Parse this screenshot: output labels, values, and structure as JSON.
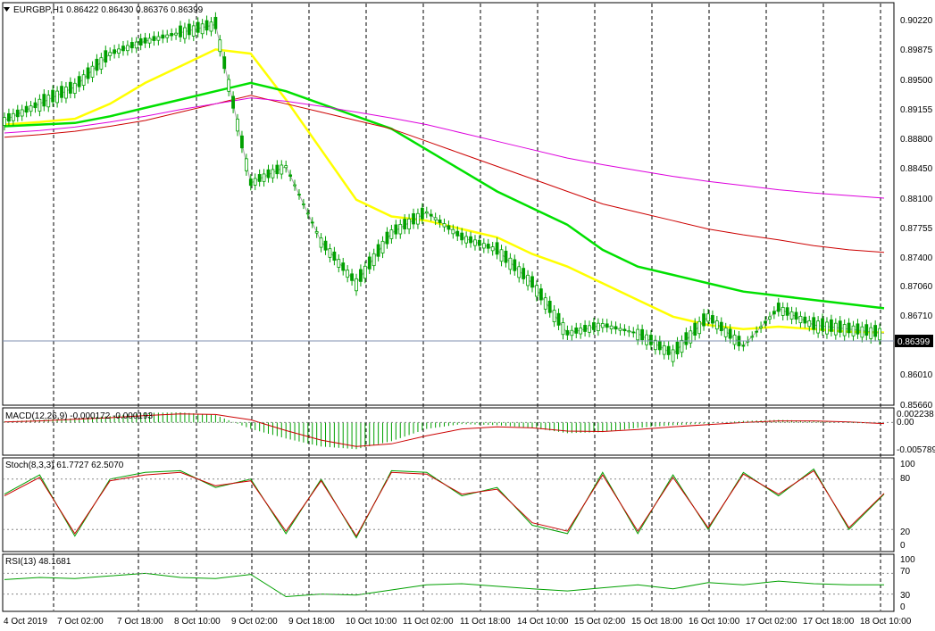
{
  "header": {
    "symbol_line": "EURGBP,H1  0.86422 0.86430 0.86376 0.86399",
    "menu_icon": "triangle-down-icon"
  },
  "panels": {
    "macd_label": "MACD(12,26,9) -0.000172 -0.000193",
    "stoch_label": "Stoch(8,3,3) 61.7727 62.5070",
    "rsi_label": "RSI(13) 48.1681"
  },
  "price_axis": {
    "labels": [
      "0.90220",
      "0.89875",
      "0.89500",
      "0.89155",
      "0.88800",
      "0.88450",
      "0.88100",
      "0.87755",
      "0.87400",
      "0.87060",
      "0.86710",
      "0.86010",
      "0.85660"
    ],
    "current_price": "0.86399"
  },
  "macd_axis": {
    "labels": [
      "0.002238",
      "0.00",
      "-0.005789"
    ]
  },
  "stoch_axis": {
    "labels": [
      "100",
      "80",
      "20",
      "0"
    ]
  },
  "rsi_axis": {
    "labels": [
      "100",
      "70",
      "30",
      "0"
    ]
  },
  "time_axis": {
    "labels": [
      "4 Oct 2019",
      "7 Oct 02:00",
      "7 Oct 18:00",
      "8 Oct 10:00",
      "9 Oct 02:00",
      "9 Oct 18:00",
      "10 Oct 10:00",
      "11 Oct 02:00",
      "11 Oct 18:00",
      "14 Oct 10:00",
      "15 Oct 02:00",
      "15 Oct 18:00",
      "16 Oct 10:00",
      "17 Oct 02:00",
      "17 Oct 18:00",
      "18 Oct 10:00"
    ]
  },
  "colors": {
    "bull_candle": "#00a000",
    "bear_candle": "#00a000",
    "ma_fast": "#ffff00",
    "ma_mid": "#00e000",
    "ma_slow": "#cc0000",
    "ma_slowest": "#dd00dd",
    "ma_thin": "#a0a0a0",
    "stoch_main": "#00a000",
    "stoch_signal": "#cc0000",
    "rsi_line": "#00a000",
    "macd_hist": "#00a000",
    "macd_signal": "#cc0000",
    "grid_vertical": "#000000",
    "price_line": "#8090b0"
  },
  "chart_data": [
    {
      "type": "line",
      "panel": "price",
      "title": "EURGBP,H1",
      "ohlc_last": {
        "open": 0.86422,
        "high": 0.8643,
        "low": 0.86376,
        "close": 0.86399
      },
      "ylim": [
        0.8555,
        0.9035
      ],
      "x": [
        0,
        4,
        8,
        12,
        16,
        20,
        24,
        28,
        32,
        36,
        40,
        44,
        48,
        52,
        56,
        60,
        64,
        68,
        72,
        76,
        80,
        84,
        88,
        92,
        96,
        100
      ],
      "series": [
        {
          "role": "candles_close",
          "values": [
            0.8895,
            0.8915,
            0.8935,
            0.8975,
            0.899,
            0.9,
            0.901,
            0.882,
            0.884,
            0.875,
            0.87,
            0.876,
            0.8785,
            0.8755,
            0.874,
            0.87,
            0.864,
            0.865,
            0.864,
            0.8615,
            0.866,
            0.8625,
            0.867,
            0.865,
            0.8645,
            0.864
          ]
        },
        {
          "role": "ma_fast",
          "values": [
            0.889,
            0.8893,
            0.8897,
            0.8915,
            0.894,
            0.896,
            0.898,
            0.8975,
            0.892,
            0.886,
            0.88,
            0.878,
            0.8775,
            0.8765,
            0.8755,
            0.8735,
            0.872,
            0.87,
            0.868,
            0.866,
            0.865,
            0.8645,
            0.8648,
            0.8645,
            0.8642,
            0.8641
          ]
        },
        {
          "role": "ma_mid",
          "values": [
            0.8888,
            0.889,
            0.8892,
            0.89,
            0.891,
            0.892,
            0.893,
            0.894,
            0.893,
            0.8915,
            0.89,
            0.8885,
            0.886,
            0.8835,
            0.881,
            0.879,
            0.877,
            0.874,
            0.872,
            0.871,
            0.87,
            0.869,
            0.8685,
            0.868,
            0.8675,
            0.867
          ]
        },
        {
          "role": "ma_slow",
          "values": [
            0.8875,
            0.8878,
            0.8882,
            0.8888,
            0.8895,
            0.8905,
            0.8915,
            0.8925,
            0.8915,
            0.8905,
            0.8895,
            0.8885,
            0.887,
            0.8855,
            0.884,
            0.8825,
            0.881,
            0.8795,
            0.8785,
            0.8775,
            0.8765,
            0.8758,
            0.8752,
            0.8745,
            0.874,
            0.8737
          ]
        },
        {
          "role": "ma_slowest",
          "values": [
            0.888,
            0.8883,
            0.8887,
            0.8893,
            0.89,
            0.8908,
            0.8915,
            0.8922,
            0.8918,
            0.8912,
            0.8905,
            0.8898,
            0.889,
            0.888,
            0.887,
            0.886,
            0.885,
            0.8842,
            0.8835,
            0.8828,
            0.8822,
            0.8817,
            0.8812,
            0.8808,
            0.8805,
            0.8802
          ]
        }
      ]
    },
    {
      "type": "bar",
      "panel": "macd",
      "title": "MACD(12,26,9)",
      "ylim": [
        -0.005789,
        0.002238
      ],
      "x": [
        0,
        4,
        8,
        12,
        16,
        20,
        24,
        28,
        32,
        36,
        40,
        44,
        48,
        52,
        56,
        60,
        64,
        68,
        72,
        76,
        80,
        84,
        88,
        92,
        96,
        100
      ],
      "series": [
        {
          "role": "histogram",
          "values": [
            0.0002,
            0.0005,
            0.0008,
            0.0012,
            0.0018,
            0.0019,
            0.0014,
            -0.0012,
            -0.003,
            -0.0045,
            -0.005,
            -0.0035,
            -0.0012,
            -0.0003,
            -0.0005,
            -0.001,
            -0.002,
            -0.0018,
            -0.001,
            -0.0005,
            -0.0002,
            0.0003,
            0.0005,
            0.0003,
            -0.0001,
            -0.0002
          ]
        },
        {
          "role": "signal",
          "values": [
            0.0001,
            0.0003,
            0.0006,
            0.0009,
            0.0013,
            0.0016,
            0.0015,
            0.0005,
            -0.0015,
            -0.0033,
            -0.0045,
            -0.004,
            -0.0025,
            -0.0012,
            -0.0008,
            -0.001,
            -0.0016,
            -0.0017,
            -0.0013,
            -0.0008,
            -0.0004,
            0.0,
            0.0003,
            0.0003,
            0.0001,
            -0.0002
          ]
        }
      ]
    },
    {
      "type": "line",
      "panel": "stoch",
      "title": "Stoch(8,3,3)",
      "ylim": [
        0,
        100
      ],
      "x": [
        0,
        4,
        8,
        12,
        16,
        20,
        24,
        28,
        32,
        36,
        40,
        44,
        48,
        52,
        56,
        60,
        64,
        68,
        72,
        76,
        80,
        84,
        88,
        92,
        96,
        100
      ],
      "series": [
        {
          "role": "main",
          "values": [
            62,
            85,
            12,
            80,
            88,
            90,
            70,
            80,
            15,
            80,
            10,
            90,
            88,
            60,
            70,
            25,
            15,
            88,
            15,
            85,
            20,
            88,
            60,
            92,
            20,
            62
          ]
        },
        {
          "role": "signal",
          "values": [
            60,
            82,
            15,
            78,
            85,
            88,
            72,
            78,
            18,
            78,
            12,
            88,
            86,
            62,
            68,
            28,
            18,
            85,
            18,
            82,
            22,
            86,
            62,
            90,
            22,
            63
          ]
        }
      ]
    },
    {
      "type": "line",
      "panel": "rsi",
      "title": "RSI(13)",
      "ylim": [
        0,
        100
      ],
      "x": [
        0,
        4,
        8,
        12,
        16,
        20,
        24,
        28,
        32,
        36,
        40,
        44,
        48,
        52,
        56,
        60,
        64,
        68,
        72,
        76,
        80,
        84,
        88,
        92,
        96,
        100
      ],
      "series": [
        {
          "role": "rsi",
          "values": [
            58,
            62,
            60,
            65,
            70,
            62,
            60,
            68,
            25,
            30,
            28,
            38,
            48,
            50,
            45,
            40,
            36,
            42,
            48,
            40,
            52,
            48,
            55,
            50,
            48,
            48
          ]
        }
      ]
    }
  ]
}
